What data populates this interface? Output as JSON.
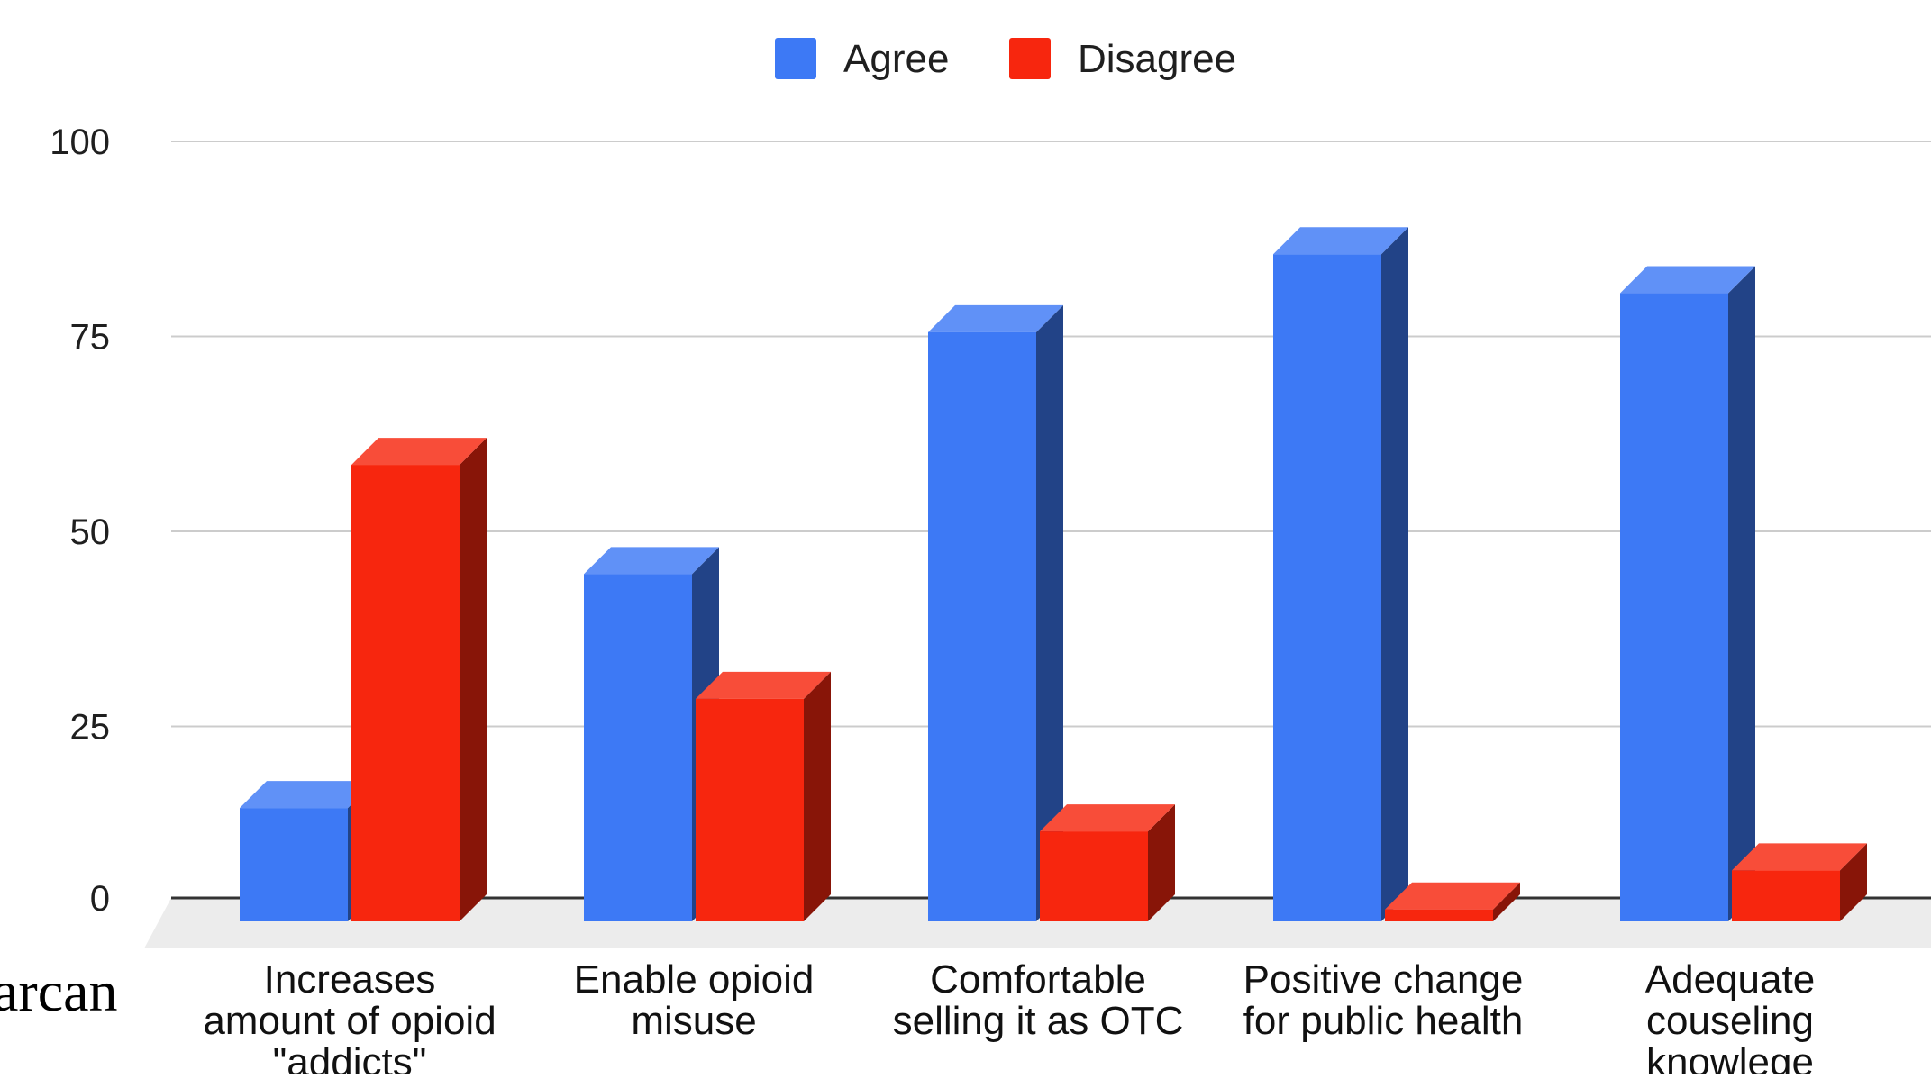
{
  "chart_data": {
    "type": "bar",
    "style": "3d",
    "categories": [
      [
        "Increases",
        "amount of opioid",
        "\"addicts\""
      ],
      [
        "Enable opioid",
        "misuse"
      ],
      [
        "Comfortable",
        "selling it as OTC"
      ],
      [
        "Positive change",
        "for public health"
      ],
      [
        "Adequate",
        "couseling",
        "knowlege"
      ]
    ],
    "series": [
      {
        "name": "Agree",
        "color": "#3d79f5",
        "values": [
          18,
          48,
          79,
          89,
          84
        ]
      },
      {
        "name": "Disagree",
        "color": "#f7260e",
        "values": [
          62,
          32,
          15,
          5,
          10
        ]
      }
    ],
    "ylim": [
      0,
      100
    ],
    "yticks": [
      "0",
      "25",
      "50",
      "75",
      "100"
    ],
    "grid": true,
    "legend_position": "top-center"
  },
  "side_text": "arcan"
}
